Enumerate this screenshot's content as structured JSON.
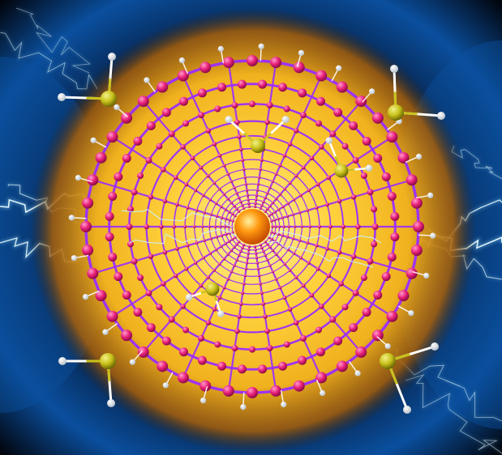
{
  "image": {
    "subject": "nanotube-illustration",
    "text": []
  },
  "colors": {
    "background_dark": "#02060f",
    "background_blue": "#0a4f9e",
    "glow_core": "#fff6a8",
    "glow_mid": "#f0b21e",
    "glow_edge": "#a8600a",
    "carbon_atom": "#e8207a",
    "bond": "#9b2cff",
    "center_atom": "#ff8a00",
    "sulfur_atom": "#c9c21a",
    "hydrogen_atom": "#ffffff",
    "lightning": "#9fe3ff"
  }
}
